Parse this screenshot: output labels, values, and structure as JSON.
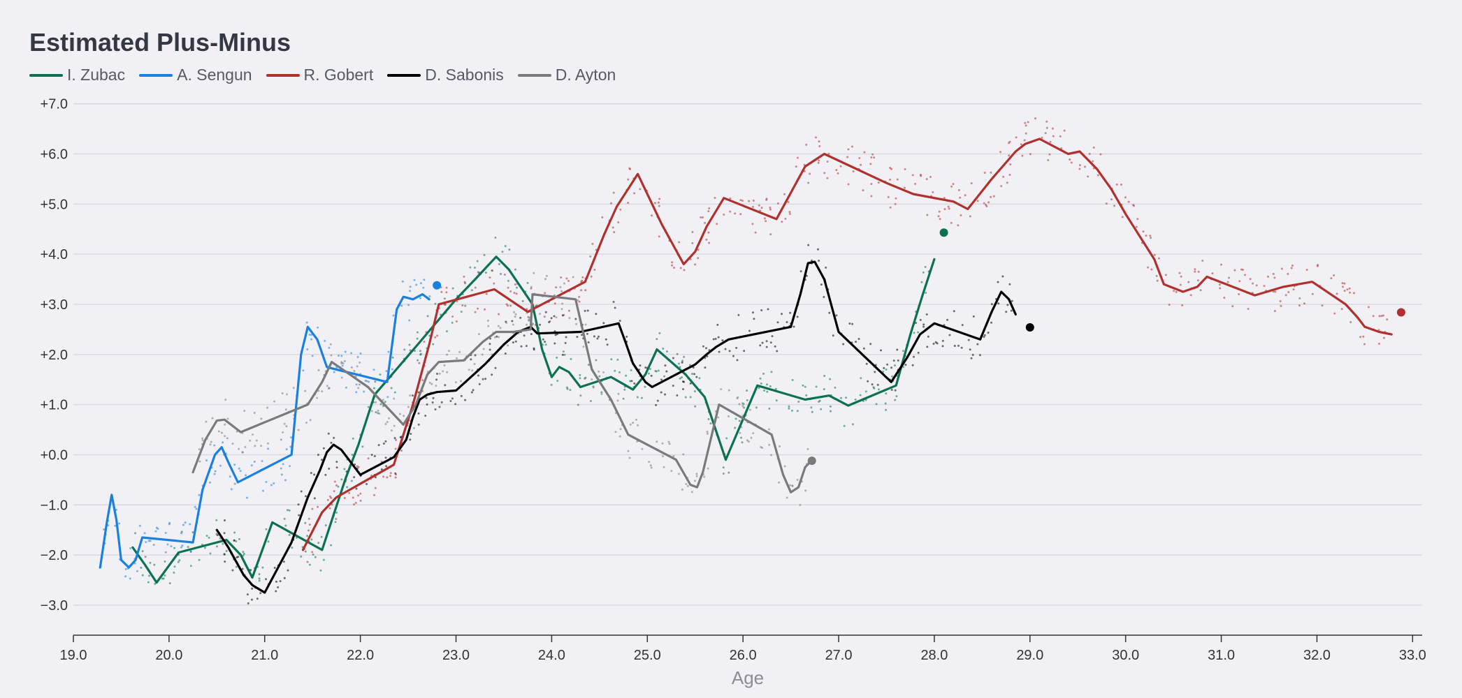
{
  "chart_data": {
    "type": "line",
    "title": "Estimated Plus-Minus",
    "xlabel": "Age",
    "ylabel": "",
    "xlim": [
      19.0,
      33.1
    ],
    "ylim": [
      -3.6,
      7.4
    ],
    "x_ticks": [
      19.0,
      20.0,
      21.0,
      22.0,
      23.0,
      24.0,
      25.0,
      26.0,
      27.0,
      28.0,
      29.0,
      30.0,
      31.0,
      32.0,
      33.0
    ],
    "x_tick_labels": [
      "19.0",
      "20.0",
      "21.0",
      "22.0",
      "23.0",
      "24.0",
      "25.0",
      "26.0",
      "27.0",
      "28.0",
      "29.0",
      "30.0",
      "31.0",
      "32.0",
      "33.0"
    ],
    "y_ticks": [
      -3,
      -2,
      -1,
      0,
      1,
      2,
      3,
      4,
      5,
      6,
      7
    ],
    "y_tick_labels": [
      "−3.0",
      "−2.0",
      "−1.0",
      "+0.0",
      "+1.0",
      "+2.0",
      "+3.0",
      "+4.0",
      "+5.0",
      "+6.0",
      "+7.0"
    ],
    "grid": "horizontal",
    "legend_position": "top-left",
    "series": [
      {
        "name": "I. Zubac",
        "color": "#0b7150",
        "x": [
          19.62,
          19.75,
          19.87,
          20.1,
          20.6,
          20.75,
          20.87,
          21.08,
          21.6,
          21.72,
          21.85,
          21.98,
          22.15,
          22.6,
          23.0,
          23.2,
          23.42,
          23.55,
          23.8,
          23.9,
          24.0,
          24.08,
          24.18,
          24.3,
          24.62,
          24.85,
          24.98,
          25.1,
          25.4,
          25.6,
          25.82,
          26.15,
          26.65,
          26.9,
          27.1,
          27.6,
          27.75,
          27.88,
          28.0
        ],
        "y": [
          -1.85,
          -2.2,
          -2.55,
          -1.95,
          -1.7,
          -2.0,
          -2.45,
          -1.35,
          -1.9,
          -1.2,
          -0.45,
          0.2,
          1.2,
          2.2,
          3.1,
          3.5,
          3.95,
          3.7,
          3.0,
          2.1,
          1.55,
          1.75,
          1.65,
          1.35,
          1.55,
          1.3,
          1.6,
          2.1,
          1.6,
          1.15,
          -0.1,
          1.38,
          1.1,
          1.18,
          0.98,
          1.38,
          2.4,
          3.2,
          3.9
        ],
        "end": [
          28.1,
          4.43
        ]
      },
      {
        "name": "A. Sengun",
        "color": "#1a80e0",
        "x": [
          19.28,
          19.35,
          19.4,
          19.45,
          19.5,
          19.58,
          19.65,
          19.72,
          20.25,
          20.35,
          20.48,
          20.55,
          20.62,
          20.72,
          21.28,
          21.38,
          21.45,
          21.55,
          21.65,
          21.75,
          22.28,
          22.38,
          22.45,
          22.55,
          22.65,
          22.72
        ],
        "y": [
          -2.25,
          -1.35,
          -0.8,
          -1.3,
          -2.1,
          -2.25,
          -2.1,
          -1.65,
          -1.75,
          -0.7,
          0.0,
          0.15,
          -0.15,
          -0.55,
          0.0,
          2.0,
          2.55,
          2.3,
          1.75,
          1.7,
          1.45,
          2.9,
          3.15,
          3.1,
          3.2,
          3.1
        ],
        "end": [
          22.8,
          3.38
        ]
      },
      {
        "name": "R. Gobert",
        "color": "#b0302d",
        "x": [
          21.4,
          21.6,
          21.75,
          22.35,
          22.55,
          22.72,
          22.82,
          23.4,
          23.75,
          24.35,
          24.55,
          24.68,
          24.9,
          25.15,
          25.38,
          25.5,
          25.62,
          25.8,
          26.35,
          26.55,
          26.65,
          26.85,
          27.5,
          27.78,
          28.2,
          28.35,
          28.6,
          28.85,
          28.95,
          29.1,
          29.4,
          29.52,
          29.7,
          29.85,
          30.0,
          30.3,
          30.4,
          30.6,
          30.75,
          30.85,
          31.35,
          31.65,
          31.95,
          32.3,
          32.42,
          32.5,
          32.65,
          32.78
        ],
        "y": [
          -1.9,
          -1.15,
          -0.85,
          -0.2,
          1.0,
          2.2,
          3.0,
          3.3,
          2.85,
          3.45,
          4.4,
          4.95,
          5.6,
          4.6,
          3.8,
          4.05,
          4.55,
          5.12,
          4.7,
          5.4,
          5.75,
          6.0,
          5.42,
          5.2,
          5.05,
          4.9,
          5.5,
          6.05,
          6.2,
          6.3,
          6.0,
          6.05,
          5.7,
          5.3,
          4.8,
          3.9,
          3.4,
          3.25,
          3.35,
          3.55,
          3.18,
          3.35,
          3.45,
          3.0,
          2.75,
          2.55,
          2.45,
          2.4
        ],
        "end": [
          32.88,
          2.84
        ]
      },
      {
        "name": "D. Sabonis",
        "color": "#000000",
        "x": [
          20.5,
          20.62,
          20.78,
          20.87,
          21.0,
          21.28,
          21.45,
          21.58,
          21.65,
          21.72,
          21.8,
          22.0,
          22.35,
          22.48,
          22.55,
          22.62,
          22.7,
          22.8,
          23.0,
          23.3,
          23.5,
          23.65,
          23.78,
          23.85,
          24.3,
          24.7,
          24.78,
          24.85,
          24.98,
          25.05,
          25.5,
          25.62,
          25.72,
          25.85,
          25.98,
          26.5,
          26.6,
          26.68,
          26.75,
          26.85,
          27.0,
          27.55,
          27.72,
          27.85,
          28.0,
          28.48,
          28.6,
          28.7,
          28.78,
          28.85
        ],
        "y": [
          -1.5,
          -1.85,
          -2.4,
          -2.6,
          -2.75,
          -1.75,
          -0.85,
          -0.3,
          0.05,
          0.2,
          0.1,
          -0.4,
          -0.05,
          0.3,
          0.75,
          1.1,
          1.2,
          1.25,
          1.28,
          1.8,
          2.2,
          2.45,
          2.55,
          2.42,
          2.45,
          2.62,
          2.2,
          1.82,
          1.45,
          1.35,
          1.8,
          2.0,
          2.15,
          2.3,
          2.35,
          2.55,
          3.2,
          3.82,
          3.85,
          3.5,
          2.45,
          1.45,
          1.95,
          2.4,
          2.62,
          2.3,
          2.85,
          3.25,
          3.1,
          2.8
        ],
        "end": [
          29.0,
          2.54
        ]
      },
      {
        "name": "D. Ayton",
        "color": "#7a7a7a",
        "x": [
          20.25,
          20.38,
          20.5,
          20.58,
          20.75,
          21.45,
          21.6,
          21.7,
          22.08,
          22.45,
          22.58,
          22.7,
          22.82,
          23.08,
          23.28,
          23.42,
          23.6,
          23.78,
          23.8,
          24.25,
          24.42,
          24.62,
          24.8,
          25.3,
          25.45,
          25.52,
          25.58,
          25.75,
          26.3,
          26.42,
          26.5,
          26.58,
          26.65,
          26.7
        ],
        "y": [
          -0.35,
          0.3,
          0.68,
          0.7,
          0.45,
          1.0,
          1.45,
          1.85,
          1.35,
          0.6,
          1.0,
          1.6,
          1.85,
          1.88,
          2.25,
          2.45,
          2.45,
          2.5,
          3.2,
          3.1,
          1.7,
          1.1,
          0.4,
          -0.1,
          -0.6,
          -0.65,
          -0.35,
          1.0,
          0.4,
          -0.4,
          -0.75,
          -0.65,
          -0.25,
          -0.15
        ],
        "end": [
          26.72,
          -0.12
        ]
      }
    ]
  }
}
